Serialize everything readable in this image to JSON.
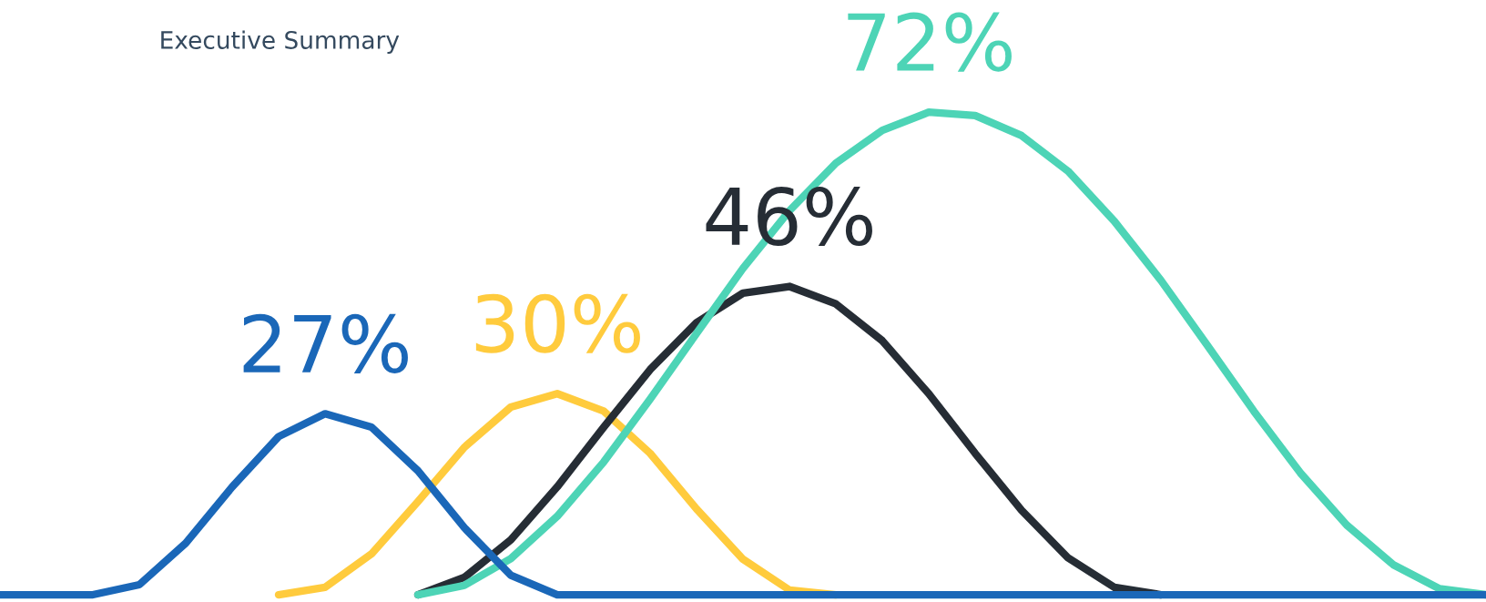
{
  "chart_data": {
    "type": "line",
    "subtitle": "Executive Summary",
    "marker": "none",
    "line_style": "solid",
    "categories": [
      null,
      null,
      null,
      null,
      null,
      null,
      null,
      null,
      null,
      null,
      null,
      null,
      null,
      null,
      null,
      null,
      null,
      null,
      null,
      null,
      null,
      null,
      null,
      null,
      null,
      null,
      null,
      null,
      null,
      null,
      null,
      null,
      null
    ],
    "series": [
      {
        "color": "#ffcb3d",
        "values": [
          null,
          null,
          null,
          null,
          null,
          null,
          0,
          1.1,
          6.1,
          13.9,
          22.0,
          28.0,
          30,
          27.4,
          21.1,
          12.8,
          5.3,
          0.7,
          0,
          null,
          null,
          null,
          null,
          null,
          null,
          null,
          null,
          null,
          null,
          null,
          null,
          null,
          null
        ],
        "value_labels": [
          null,
          null,
          null,
          null,
          null,
          null,
          null,
          null,
          null,
          null,
          null,
          null,
          "30%",
          null,
          null,
          null,
          null,
          null,
          null,
          null,
          null,
          null,
          null,
          null,
          null,
          null,
          null,
          null,
          null,
          null,
          null,
          null,
          null
        ]
      },
      {
        "color": "#262d35",
        "values": [
          null,
          null,
          null,
          null,
          null,
          null,
          null,
          null,
          null,
          0,
          2.6,
          8.2,
          16.1,
          25.0,
          33.6,
          40.6,
          45.0,
          46,
          43.4,
          37.9,
          30.0,
          21.1,
          12.6,
          5.5,
          1.1,
          0,
          null,
          null,
          null,
          null,
          null,
          null,
          null
        ],
        "value_labels": [
          null,
          null,
          null,
          null,
          null,
          null,
          null,
          null,
          null,
          null,
          null,
          null,
          null,
          null,
          null,
          null,
          null,
          "46%",
          null,
          null,
          null,
          null,
          null,
          null,
          null,
          null,
          null,
          null,
          null,
          null,
          null,
          null,
          null
        ]
      },
      {
        "color": "#4dd4b6",
        "values": [
          null,
          null,
          null,
          null,
          null,
          null,
          null,
          null,
          null,
          0,
          1.4,
          5.4,
          11.7,
          19.8,
          29.2,
          39.0,
          48.7,
          57.3,
          64.4,
          69.3,
          72,
          71.5,
          68.5,
          63.2,
          55.7,
          46.9,
          37.2,
          27.4,
          18.2,
          10.4,
          4.5,
          0.9,
          0
        ],
        "value_labels": [
          null,
          null,
          null,
          null,
          null,
          null,
          null,
          null,
          null,
          null,
          null,
          null,
          null,
          null,
          null,
          null,
          null,
          null,
          null,
          null,
          "72%",
          null,
          null,
          null,
          null,
          null,
          null,
          null,
          null,
          null,
          null,
          null,
          null
        ]
      },
      {
        "color": "#1a67b8",
        "values": [
          0,
          0,
          0,
          1.5,
          7.7,
          16.1,
          23.6,
          27,
          25.0,
          18.5,
          10.0,
          2.9,
          0,
          0,
          0,
          0,
          0,
          0,
          0,
          0,
          0,
          0,
          0,
          0,
          0,
          0,
          0,
          0,
          0,
          0,
          0,
          0,
          0
        ],
        "value_labels": [
          null,
          null,
          null,
          null,
          null,
          null,
          null,
          "27%",
          null,
          null,
          null,
          null,
          null,
          null,
          null,
          null,
          null,
          null,
          null,
          null,
          null,
          null,
          null,
          null,
          null,
          null,
          null,
          null,
          null,
          null,
          null,
          null,
          null
        ]
      }
    ]
  }
}
